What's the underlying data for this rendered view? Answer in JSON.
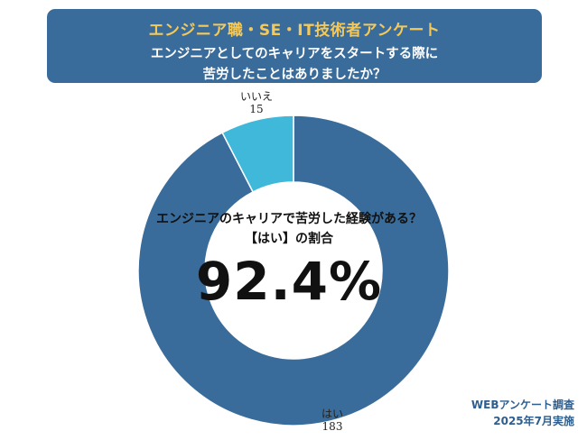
{
  "header": {
    "title": "エンジニア職・SE・IT技術者アンケート",
    "question_line1": "エンジニアとしてのキャリアをスタートする際に",
    "question_line2": "苦労したことはありましたか？"
  },
  "center": {
    "line1": "エンジニアのキャリアで苦労した経験がある？",
    "line2": "【はい】の割合",
    "percent": "92.4%"
  },
  "footer": {
    "line1": "WEBアンケート調査",
    "line2": "2025年7月実施"
  },
  "colors": {
    "yes": "#3a6c9b",
    "no": "#3fb8d9"
  },
  "chart_data": {
    "type": "pie",
    "categories": [
      "はい",
      "いいえ"
    ],
    "values": [
      183,
      15
    ],
    "labels": [
      "183",
      "15"
    ]
  }
}
